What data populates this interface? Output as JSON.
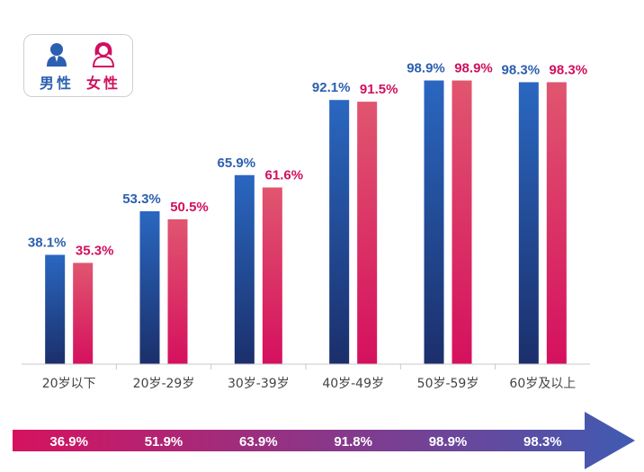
{
  "legend": {
    "male_label": "男性",
    "female_label": "女性"
  },
  "colors": {
    "male_top": "#2a67c0",
    "male_bottom": "#1b2f6b",
    "female_top": "#e0566f",
    "female_bottom": "#d5105e",
    "male_text": "#2b5fb0",
    "female_text": "#d0105e",
    "arrow_start": "#d6125f",
    "arrow_end": "#3f5bb2"
  },
  "chart_data": {
    "type": "bar",
    "categories": [
      "20岁以下",
      "20岁-29岁",
      "30岁-39岁",
      "40岁-49岁",
      "50岁-59岁",
      "60岁及以上"
    ],
    "series": [
      {
        "name": "男性",
        "values": [
          38.1,
          53.3,
          65.9,
          92.1,
          98.9,
          98.3
        ],
        "labels": [
          "38.1%",
          "53.3%",
          "65.9%",
          "92.1%",
          "98.9%",
          "98.3%"
        ]
      },
      {
        "name": "女性",
        "values": [
          35.3,
          50.5,
          61.6,
          91.5,
          98.9,
          98.3
        ],
        "labels": [
          "35.3%",
          "50.5%",
          "61.6%",
          "91.5%",
          "98.9%",
          "98.3%"
        ]
      }
    ],
    "totals": {
      "values": [
        36.9,
        51.9,
        63.9,
        91.8,
        98.9,
        98.3
      ],
      "labels": [
        "36.9%",
        "51.9%",
        "63.9%",
        "91.8%",
        "98.9%",
        "98.3%"
      ]
    },
    "ylim": [
      0,
      100
    ],
    "grid": false,
    "legend_position": "top-left"
  }
}
